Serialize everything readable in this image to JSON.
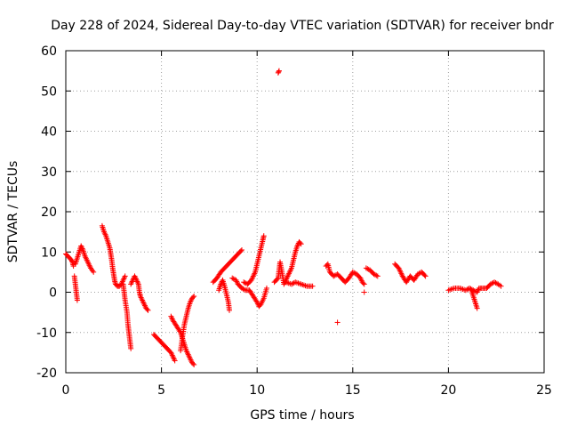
{
  "chart_data": {
    "type": "scatter",
    "title": "Day 228 of 2024, Sidereal Day-to-day VTEC variation (SDTVAR) for receiver bndr",
    "xlabel": "GPS time / hours",
    "ylabel": "SDTVAR / TECUs",
    "xlim": [
      0,
      25
    ],
    "ylim": [
      -20,
      60
    ],
    "xticks": [
      0,
      5,
      10,
      15,
      20,
      25
    ],
    "yticks": [
      -20,
      -10,
      0,
      10,
      20,
      30,
      40,
      50,
      60
    ],
    "grid": true,
    "marker": "+",
    "color": "#ff0000",
    "series": [
      {
        "name": "SDTVAR",
        "segments": [
          [
            [
              0.0,
              9.5
            ],
            [
              0.1,
              9.0
            ],
            [
              0.2,
              8.5
            ],
            [
              0.3,
              8.0
            ],
            [
              0.35,
              7.5
            ],
            [
              0.4,
              6.5
            ]
          ],
          [
            [
              0.45,
              4.0
            ],
            [
              0.5,
              2.0
            ],
            [
              0.55,
              0.0
            ],
            [
              0.6,
              -2.0
            ]
          ],
          [
            [
              0.5,
              7.0
            ],
            [
              0.6,
              8.5
            ],
            [
              0.7,
              10.0
            ],
            [
              0.8,
              11.5
            ],
            [
              0.9,
              10.5
            ],
            [
              1.0,
              9.0
            ],
            [
              1.1,
              8.0
            ],
            [
              1.2,
              7.0
            ],
            [
              1.3,
              6.0
            ],
            [
              1.45,
              5.0
            ]
          ],
          [
            [
              1.9,
              16.5
            ],
            [
              2.0,
              15.0
            ],
            [
              2.1,
              14.0
            ],
            [
              2.2,
              12.5
            ],
            [
              2.3,
              11.0
            ],
            [
              2.35,
              9.5
            ],
            [
              2.4,
              8.0
            ],
            [
              2.45,
              6.0
            ],
            [
              2.5,
              4.5
            ],
            [
              2.55,
              3.0
            ],
            [
              2.6,
              2.0
            ],
            [
              2.7,
              1.5
            ],
            [
              2.8,
              1.5
            ],
            [
              2.9,
              2.0
            ],
            [
              3.0,
              3.0
            ],
            [
              3.1,
              4.0
            ]
          ],
          [
            [
              3.0,
              2.0
            ],
            [
              3.1,
              -2.0
            ],
            [
              3.2,
              -5.0
            ],
            [
              3.25,
              -8.0
            ],
            [
              3.3,
              -10.0
            ],
            [
              3.35,
              -12.0
            ],
            [
              3.4,
              -14.0
            ]
          ],
          [
            [
              3.4,
              2.0
            ],
            [
              3.5,
              3.0
            ],
            [
              3.6,
              4.0
            ],
            [
              3.7,
              3.0
            ],
            [
              3.8,
              2.0
            ],
            [
              3.85,
              0.0
            ],
            [
              3.9,
              -1.0
            ],
            [
              4.0,
              -2.0
            ],
            [
              4.1,
              -3.0
            ],
            [
              4.2,
              -4.0
            ],
            [
              4.3,
              -4.5
            ]
          ],
          [
            [
              4.6,
              -10.5
            ],
            [
              4.8,
              -11.5
            ],
            [
              5.0,
              -12.5
            ],
            [
              5.2,
              -13.5
            ],
            [
              5.4,
              -14.5
            ],
            [
              5.5,
              -15.0
            ],
            [
              5.6,
              -16.0
            ],
            [
              5.7,
              -17.0
            ]
          ],
          [
            [
              5.5,
              -6.0
            ],
            [
              5.6,
              -7.0
            ],
            [
              5.8,
              -8.5
            ],
            [
              6.0,
              -10.0
            ],
            [
              6.1,
              -11.5
            ],
            [
              6.2,
              -13.0
            ],
            [
              6.3,
              -14.5
            ],
            [
              6.4,
              -15.5
            ],
            [
              6.5,
              -16.5
            ],
            [
              6.6,
              -17.5
            ],
            [
              6.7,
              -18.0
            ]
          ],
          [
            [
              6.0,
              -14.5
            ],
            [
              6.1,
              -11.0
            ],
            [
              6.2,
              -8.0
            ],
            [
              6.3,
              -6.0
            ],
            [
              6.4,
              -4.0
            ],
            [
              6.5,
              -2.5
            ],
            [
              6.6,
              -1.5
            ],
            [
              6.7,
              -1.0
            ]
          ],
          [
            [
              7.7,
              2.5
            ],
            [
              7.9,
              3.5
            ],
            [
              8.1,
              5.0
            ],
            [
              8.3,
              6.0
            ],
            [
              8.5,
              7.0
            ],
            [
              8.7,
              8.0
            ],
            [
              8.9,
              9.0
            ],
            [
              9.1,
              10.0
            ],
            [
              9.2,
              10.5
            ]
          ],
          [
            [
              8.0,
              0.5
            ],
            [
              8.1,
              2.0
            ],
            [
              8.2,
              3.0
            ],
            [
              8.3,
              1.5
            ],
            [
              8.4,
              -0.5
            ],
            [
              8.5,
              -2.5
            ],
            [
              8.55,
              -4.5
            ]
          ],
          [
            [
              8.7,
              3.5
            ],
            [
              8.9,
              3.0
            ],
            [
              9.0,
              2.0
            ],
            [
              9.2,
              1.0
            ],
            [
              9.4,
              0.5
            ],
            [
              9.6,
              0.5
            ],
            [
              9.8,
              -1.0
            ],
            [
              10.0,
              -2.5
            ],
            [
              10.1,
              -3.5
            ],
            [
              10.2,
              -3.0
            ],
            [
              10.35,
              -1.5
            ],
            [
              10.5,
              1.0
            ]
          ],
          [
            [
              9.3,
              2.5
            ],
            [
              9.5,
              2.0
            ],
            [
              9.7,
              3.0
            ],
            [
              9.9,
              5.0
            ],
            [
              10.0,
              7.0
            ],
            [
              10.1,
              9.0
            ],
            [
              10.2,
              11.0
            ],
            [
              10.3,
              13.0
            ],
            [
              10.35,
              14.0
            ]
          ],
          [
            [
              10.9,
              2.5
            ],
            [
              11.1,
              3.5
            ],
            [
              11.2,
              7.5
            ],
            [
              11.3,
              5.0
            ],
            [
              11.4,
              2.0
            ],
            [
              11.6,
              4.0
            ],
            [
              11.8,
              6.0
            ],
            [
              11.9,
              8.0
            ],
            [
              12.0,
              10.0
            ],
            [
              12.1,
              11.5
            ],
            [
              12.2,
              12.5
            ],
            [
              12.3,
              12.0
            ]
          ],
          [
            [
              11.1,
              54.5
            ],
            [
              11.15,
              55.0
            ]
          ],
          [
            [
              11.5,
              2.5
            ],
            [
              11.8,
              2.0
            ],
            [
              12.0,
              2.5
            ],
            [
              12.3,
              2.0
            ],
            [
              12.6,
              1.5
            ],
            [
              12.9,
              1.5
            ]
          ],
          [
            [
              13.6,
              6.5
            ],
            [
              13.7,
              7.0
            ],
            [
              13.8,
              5.0
            ],
            [
              14.0,
              4.0
            ],
            [
              14.2,
              4.5
            ],
            [
              14.4,
              3.5
            ],
            [
              14.6,
              2.5
            ],
            [
              14.8,
              3.5
            ],
            [
              15.0,
              5.0
            ],
            [
              15.2,
              4.5
            ],
            [
              15.4,
              3.5
            ],
            [
              15.5,
              2.5
            ],
            [
              15.6,
              2.0
            ]
          ],
          [
            [
              14.2,
              -7.5
            ],
            [
              15.6,
              0.0
            ]
          ],
          [
            [
              15.7,
              6.0
            ],
            [
              15.9,
              5.5
            ],
            [
              16.1,
              4.5
            ],
            [
              16.3,
              4.0
            ]
          ],
          [
            [
              17.2,
              7.0
            ],
            [
              17.4,
              6.0
            ],
            [
              17.6,
              4.0
            ],
            [
              17.8,
              2.5
            ],
            [
              18.0,
              4.0
            ],
            [
              18.2,
              3.0
            ],
            [
              18.4,
              4.5
            ],
            [
              18.6,
              5.0
            ],
            [
              18.8,
              4.0
            ]
          ],
          [
            [
              20.0,
              0.5
            ],
            [
              20.3,
              1.0
            ],
            [
              20.6,
              1.0
            ],
            [
              20.9,
              0.5
            ],
            [
              21.1,
              1.0
            ],
            [
              21.3,
              0.5
            ],
            [
              21.5,
              0.0
            ],
            [
              21.6,
              1.0
            ],
            [
              21.8,
              1.0
            ],
            [
              22.0,
              1.0
            ],
            [
              22.2,
              2.0
            ],
            [
              22.4,
              2.5
            ],
            [
              22.6,
              2.0
            ],
            [
              22.75,
              1.5
            ]
          ],
          [
            [
              21.2,
              0.5
            ],
            [
              21.3,
              -1.0
            ],
            [
              21.4,
              -2.5
            ],
            [
              21.5,
              -4.0
            ]
          ]
        ]
      }
    ]
  }
}
